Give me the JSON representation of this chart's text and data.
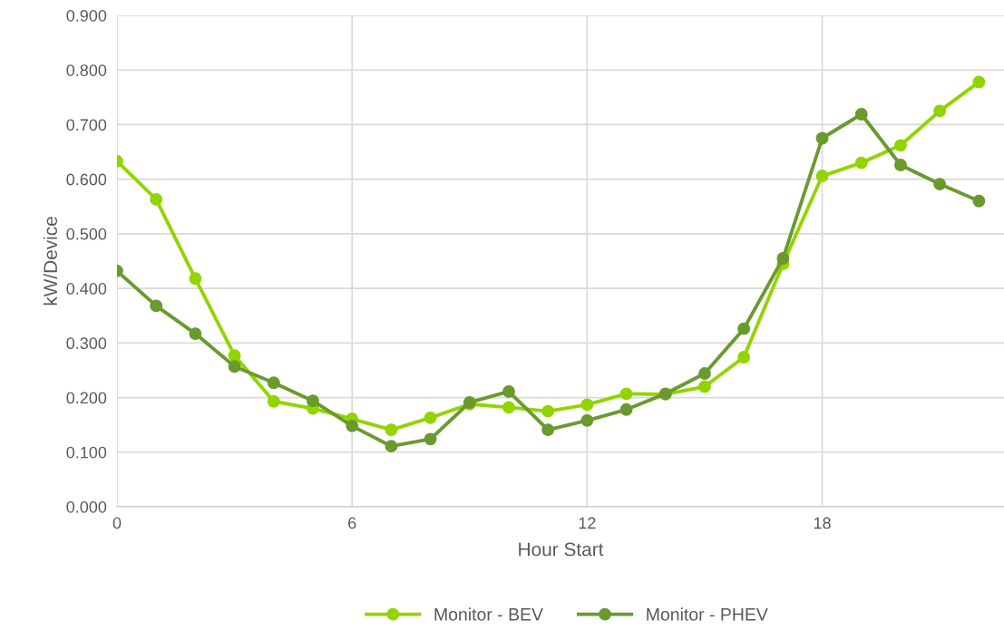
{
  "chart_data": {
    "type": "line",
    "xlabel": "Hour Start",
    "ylabel": "kW/Device",
    "x": [
      0,
      1,
      2,
      3,
      4,
      5,
      6,
      7,
      8,
      9,
      10,
      11,
      12,
      13,
      14,
      15,
      16,
      17,
      18,
      19,
      20,
      21,
      22
    ],
    "series": [
      {
        "name": "Monitor - BEV",
        "color": "#92d400",
        "values": [
          0.633,
          0.563,
          0.418,
          0.277,
          0.193,
          0.18,
          0.161,
          0.141,
          0.163,
          0.188,
          0.182,
          0.175,
          0.187,
          0.207,
          0.206,
          0.22,
          0.274,
          0.445,
          0.606,
          0.63,
          0.662,
          0.725,
          0.778
        ]
      },
      {
        "name": "Monitor - PHEV",
        "color": "#6a9a2e",
        "values": [
          0.432,
          0.368,
          0.317,
          0.257,
          0.227,
          0.194,
          0.148,
          0.111,
          0.124,
          0.191,
          0.211,
          0.141,
          0.158,
          0.178,
          0.207,
          0.244,
          0.326,
          0.455,
          0.675,
          0.719,
          0.626,
          0.591,
          0.56
        ]
      }
    ],
    "xlim": [
      0,
      22.64
    ],
    "xticks": [
      0,
      6,
      12,
      18
    ],
    "ylim": [
      0,
      0.9
    ],
    "yticks": [
      {
        "value": 0,
        "label": "0.000"
      },
      {
        "value": 0.1,
        "label": "0.100"
      },
      {
        "value": 0.2,
        "label": "0.200"
      },
      {
        "value": 0.3,
        "label": "0.300"
      },
      {
        "value": 0.4,
        "label": "0.400"
      },
      {
        "value": 0.5,
        "label": "0.500"
      },
      {
        "value": 0.6,
        "label": "0.600"
      },
      {
        "value": 0.7,
        "label": "0.700"
      },
      {
        "value": 0.8,
        "label": "0.800"
      },
      {
        "value": 0.9,
        "label": "0.900"
      }
    ],
    "grid": true,
    "legend": "bottom",
    "marker": "circle",
    "line_style": "solid"
  }
}
